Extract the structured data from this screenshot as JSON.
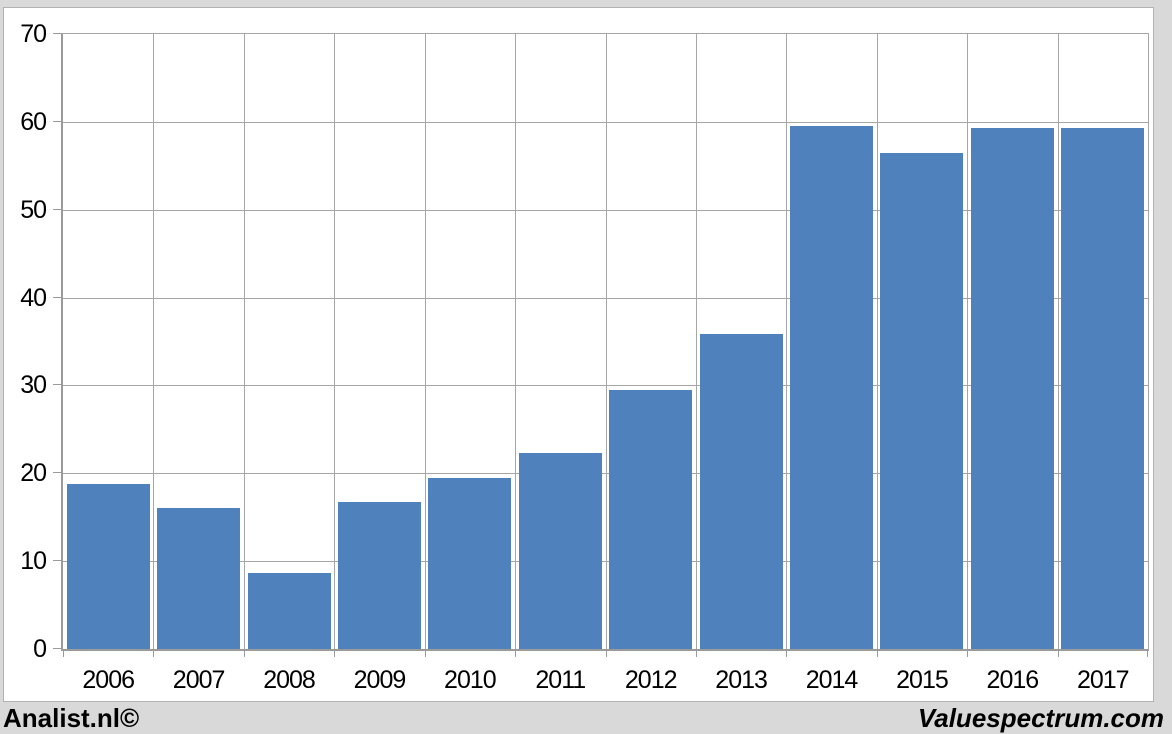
{
  "chart_data": {
    "type": "bar",
    "categories": [
      "2006",
      "2007",
      "2008",
      "2009",
      "2010",
      "2011",
      "2012",
      "2013",
      "2014",
      "2015",
      "2016",
      "2017"
    ],
    "values": [
      18.8,
      16.0,
      8.7,
      16.7,
      19.5,
      22.3,
      29.5,
      35.9,
      59.5,
      56.5,
      59.3,
      59.3
    ],
    "title": "",
    "xlabel": "",
    "ylabel": "",
    "ylim": [
      0,
      70
    ],
    "yticks": [
      0,
      10,
      20,
      30,
      40,
      50,
      60,
      70
    ],
    "grid": true,
    "legend": "none",
    "bar_color": "#4f81bd",
    "gridline_color": "#a6a6a6",
    "axis_color": "#9a9a9a",
    "plot_background": "#ffffff",
    "frame_background": "#d9d9d9"
  },
  "footer": {
    "left_text": "Analist.nl©",
    "right_text": "Valuespectrum.com"
  }
}
